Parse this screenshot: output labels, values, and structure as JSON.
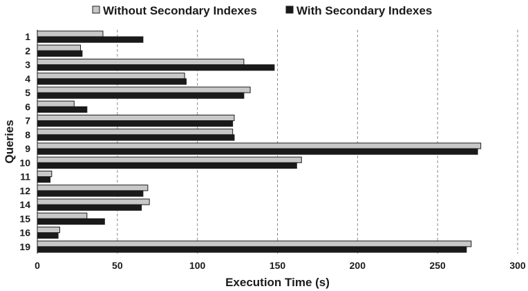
{
  "chart_data": {
    "type": "bar",
    "orientation": "horizontal",
    "categories": [
      "1",
      "2",
      "3",
      "4",
      "5",
      "6",
      "7",
      "8",
      "9",
      "10",
      "11",
      "12",
      "14",
      "15",
      "16",
      "19"
    ],
    "series": [
      {
        "name": "Without Secondary Indexes",
        "color": "#c8c8c8",
        "values": [
          41,
          27,
          129,
          92,
          133,
          23,
          123,
          122,
          277,
          165,
          9,
          69,
          70,
          31,
          14,
          271
        ]
      },
      {
        "name": "With Secondary Indexes",
        "color": "#1a1a1a",
        "values": [
          66,
          28,
          148,
          93,
          129,
          31,
          122,
          123,
          275,
          162,
          8,
          66,
          65,
          42,
          13,
          268
        ]
      }
    ],
    "xlabel": "Execution Time (s)",
    "ylabel": "Queries",
    "xlim": [
      0,
      300
    ],
    "xticks": [
      0,
      50,
      100,
      150,
      200,
      250,
      300
    ],
    "grid": "vertical-dashed",
    "legend": "top-center"
  }
}
